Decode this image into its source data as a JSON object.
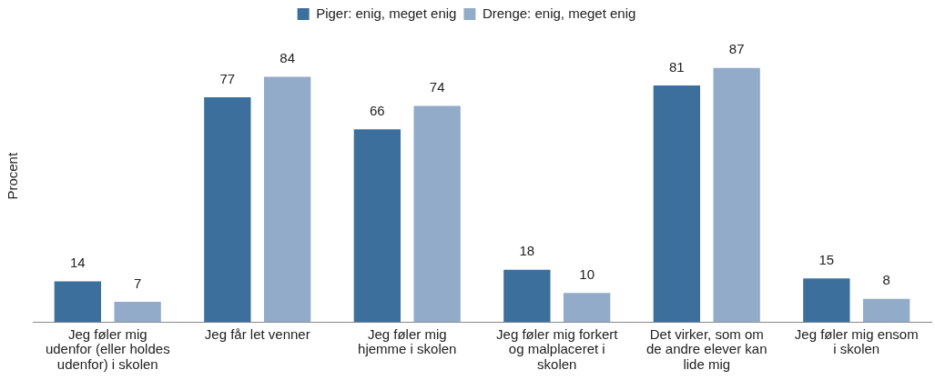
{
  "chart_data": {
    "type": "bar",
    "ylabel": "Procent",
    "categories": [
      "Jeg føler mig udenfor (eller holdes udenfor) i skolen",
      "Jeg får let venner",
      "Jeg føler mig hjemme i skolen",
      "Jeg føler mig forkert og malplaceret i skolen",
      "Det virker, som om de andre elever kan lide mig",
      "Jeg føler mig ensom i skolen"
    ],
    "series": [
      {
        "name": "Piger: enig, meget enig",
        "color": "#3d6f9c",
        "values": [
          14,
          77,
          66,
          18,
          81,
          15
        ]
      },
      {
        "name": "Drenge: enig, meget enig",
        "color": "#91abc9",
        "values": [
          7,
          84,
          74,
          10,
          87,
          8
        ]
      }
    ],
    "data_labels": true,
    "legend": "top",
    "grid": false
  }
}
